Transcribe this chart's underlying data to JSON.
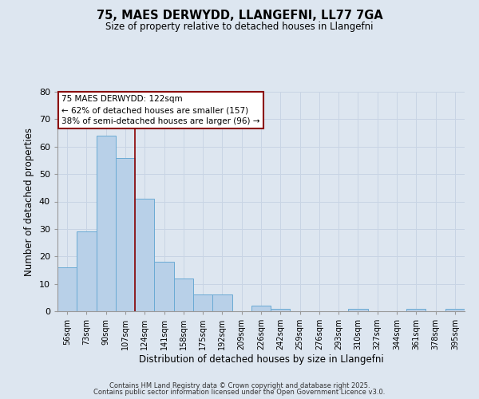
{
  "title1": "75, MAES DERWYDD, LLANGEFNI, LL77 7GA",
  "title2": "Size of property relative to detached houses in Llangefni",
  "xlabel": "Distribution of detached houses by size in Llangefni",
  "ylabel": "Number of detached properties",
  "bins": [
    "56sqm",
    "73sqm",
    "90sqm",
    "107sqm",
    "124sqm",
    "141sqm",
    "158sqm",
    "175sqm",
    "192sqm",
    "209sqm",
    "226sqm",
    "242sqm",
    "259sqm",
    "276sqm",
    "293sqm",
    "310sqm",
    "327sqm",
    "344sqm",
    "361sqm",
    "378sqm",
    "395sqm"
  ],
  "values": [
    16,
    29,
    64,
    56,
    41,
    18,
    12,
    6,
    6,
    0,
    2,
    1,
    0,
    0,
    0,
    1,
    0,
    0,
    1,
    0,
    1
  ],
  "bar_color": "#b8d0e8",
  "bar_edge_color": "#6aaad4",
  "vline_x": 3.5,
  "vline_color": "#8B0000",
  "annotation_text": "75 MAES DERWYDD: 122sqm\n← 62% of detached houses are smaller (157)\n38% of semi-detached houses are larger (96) →",
  "annotation_box_color": "#ffffff",
  "annotation_box_edge": "#8B0000",
  "ylim": [
    0,
    80
  ],
  "yticks": [
    0,
    10,
    20,
    30,
    40,
    50,
    60,
    70,
    80
  ],
  "grid_color": "#c8d4e4",
  "bg_color": "#dde6f0",
  "footnote1": "Contains HM Land Registry data © Crown copyright and database right 2025.",
  "footnote2": "Contains public sector information licensed under the Open Government Licence v3.0."
}
